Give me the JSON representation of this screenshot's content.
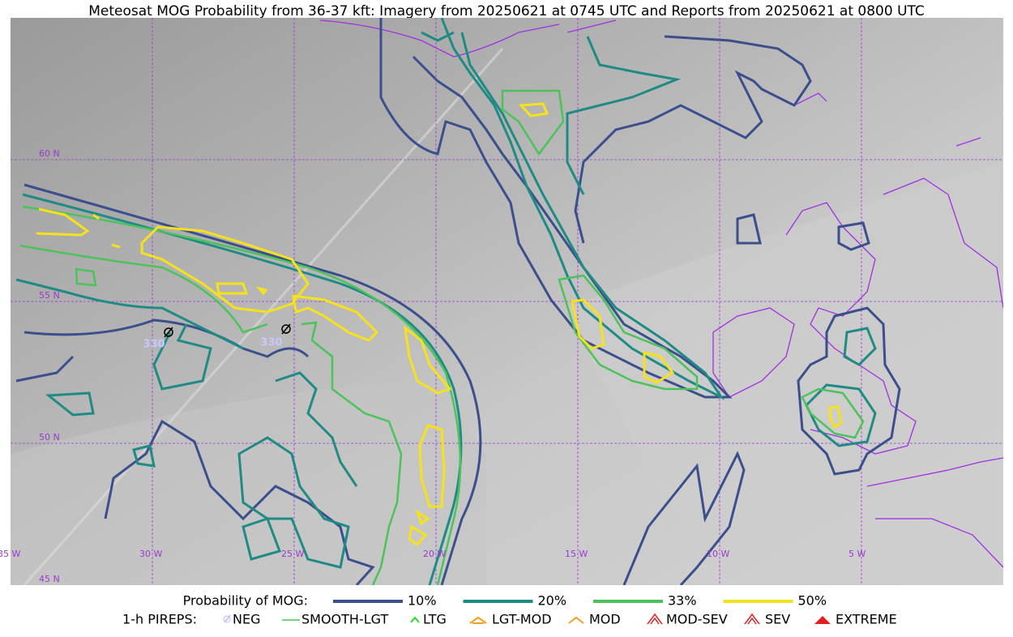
{
  "title": "Meteosat MOG Probability from 36-37 kft: Imagery from 20250621 at 0745 UTC and Reports from 20250621 at 0800 UTC",
  "latitude_labels": [
    "60 N",
    "55 N",
    "50 N",
    "45 N"
  ],
  "longitude_labels": [
    "35 W",
    "30 W",
    "25 W",
    "20 W",
    "15 W",
    "10 W",
    "5 W"
  ],
  "reports": [
    "330",
    "330"
  ],
  "legend": {
    "probability_title": "Probability of MOG:",
    "probability_items": [
      {
        "label": "10%",
        "color": "#3a4f8c"
      },
      {
        "label": "20%",
        "color": "#1f8b84"
      },
      {
        "label": "33%",
        "color": "#4cc35a"
      },
      {
        "label": "50%",
        "color": "#f6e21c"
      }
    ],
    "pireps_title": "1-h PIREPS:",
    "pirep_items": [
      "NEG",
      "SMOOTH-LGT",
      "LTG",
      "LGT-MOD",
      "MOD",
      "MOD-SEV",
      "SEV",
      "EXTREME"
    ]
  }
}
